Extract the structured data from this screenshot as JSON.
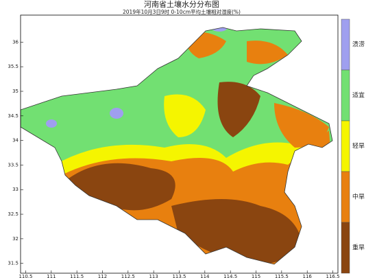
{
  "map": {
    "title": "河南省土壤水分分布图",
    "subtitle": "2019年10月3日9时 0-10cm平均土壤相对湿度(%)",
    "xlim": [
      110.4,
      116.6
    ],
    "ylim": [
      31.3,
      36.55
    ],
    "xticks": [
      110.5,
      111,
      111.5,
      112,
      112.5,
      113,
      113.5,
      114,
      114.5,
      115,
      115.5,
      116,
      116.5
    ],
    "yticks": [
      31.5,
      32,
      32.5,
      33,
      33.5,
      34,
      34.5,
      35,
      35.5,
      36
    ],
    "legend": [
      {
        "label": "渍涝",
        "color": "#9f9fef"
      },
      {
        "label": "适宜",
        "color": "#72e072"
      },
      {
        "label": "轻旱",
        "color": "#f5f500"
      },
      {
        "label": "中旱",
        "color": "#e8800f"
      },
      {
        "label": "重旱",
        "color": "#8a4510"
      }
    ]
  }
}
